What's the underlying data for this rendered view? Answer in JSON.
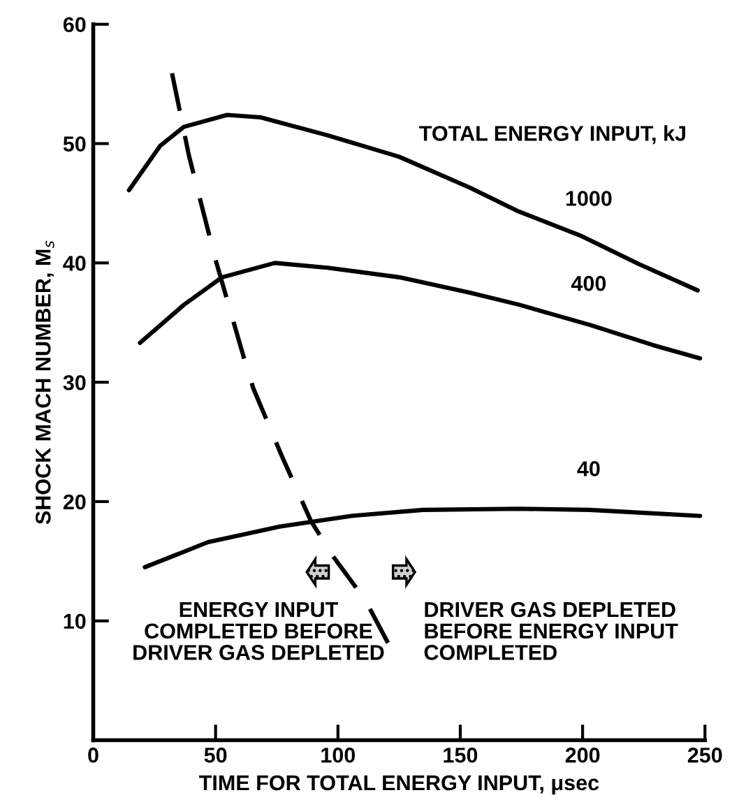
{
  "chart_data": {
    "type": "line",
    "xlabel": "TIME FOR TOTAL ENERGY INPUT, μsec",
    "ylabel": "SHOCK MACH NUMBER, M$_{s}$",
    "xlim": [
      0,
      250
    ],
    "ylim": [
      0,
      60
    ],
    "xticks": [
      0,
      50,
      100,
      150,
      200,
      250
    ],
    "yticks": [
      10,
      20,
      30,
      40,
      50,
      60
    ],
    "grid": false,
    "legend": false,
    "marker": "none",
    "annotations": [
      "TOTAL ENERGY INPUT, kJ",
      "ENERGY INPUT\nCOMPLETED BEFORE\nDRIVER GAS DEPLETED",
      "DRIVER GAS DEPLETED\nBEFORE ENERGY INPUT\nCOMPLETED"
    ],
    "series": [
      {
        "name": "1000",
        "color": "#000000",
        "line_style": "solid",
        "x": [
          14.6,
          27.3,
          37,
          54.7,
          68.4,
          95.7,
          125,
          154,
          174,
          199,
          223,
          247
        ],
        "values": [
          46.1,
          49.8,
          51.4,
          52.4,
          52.2,
          50.7,
          48.9,
          46.3,
          44.3,
          42.3,
          39.9,
          37.7
        ]
      },
      {
        "name": "400",
        "color": "#000000",
        "line_style": "solid",
        "x": [
          19.1,
          37.1,
          52.7,
          74.2,
          95.7,
          125,
          154,
          174,
          203,
          229,
          248
        ],
        "values": [
          33.3,
          36.5,
          38.8,
          40.0,
          39.6,
          38.8,
          37.5,
          36.5,
          34.8,
          33.1,
          32.0
        ]
      },
      {
        "name": "40",
        "color": "#000000",
        "line_style": "solid",
        "x": [
          21.1,
          46.9,
          76.2,
          105.5,
          134.8,
          173.8,
          203,
          248
        ],
        "values": [
          14.5,
          16.6,
          17.9,
          18.8,
          19.3,
          19.4,
          19.3,
          18.8
        ]
      },
      {
        "color": "#000000",
        "line_style": "dashed",
        "x": [
          32.2,
          39.1,
          49.8,
          61.5,
          65.4,
          77.1,
          88.9,
          97.7,
          111.3,
          121.1
        ],
        "values": [
          55.9,
          49.0,
          40.4,
          32.1,
          29.5,
          23.8,
          18.4,
          15.5,
          11.7,
          7.9
        ]
      }
    ]
  }
}
